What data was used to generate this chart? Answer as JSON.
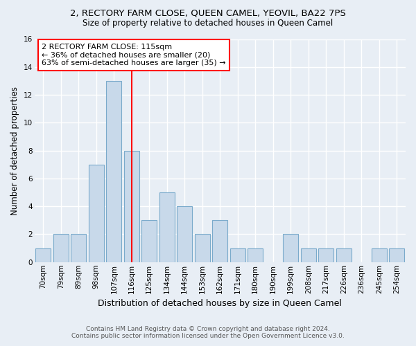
{
  "title": "2, RECTORY FARM CLOSE, QUEEN CAMEL, YEOVIL, BA22 7PS",
  "subtitle": "Size of property relative to detached houses in Queen Camel",
  "xlabel": "Distribution of detached houses by size in Queen Camel",
  "ylabel": "Number of detached properties",
  "bin_labels": [
    "70sqm",
    "79sqm",
    "89sqm",
    "98sqm",
    "107sqm",
    "116sqm",
    "125sqm",
    "134sqm",
    "144sqm",
    "153sqm",
    "162sqm",
    "171sqm",
    "180sqm",
    "190sqm",
    "199sqm",
    "208sqm",
    "217sqm",
    "226sqm",
    "236sqm",
    "245sqm",
    "254sqm"
  ],
  "values": [
    1,
    2,
    2,
    7,
    13,
    8,
    3,
    5,
    4,
    2,
    3,
    1,
    1,
    0,
    2,
    1,
    1,
    1,
    0,
    1,
    1
  ],
  "bar_color": "#c8d9ea",
  "bar_edge_color": "#7aaacb",
  "red_line_bin": 5,
  "annotation_title": "2 RECTORY FARM CLOSE: 115sqm",
  "annotation_line1": "← 36% of detached houses are smaller (20)",
  "annotation_line2": "63% of semi-detached houses are larger (35) →",
  "footer1": "Contains HM Land Registry data © Crown copyright and database right 2024.",
  "footer2": "Contains public sector information licensed under the Open Government Licence v3.0.",
  "bg_color": "#e8eef5",
  "plot_bg_color": "#e8eef5",
  "grid_color": "#ffffff",
  "ylim": [
    0,
    16
  ],
  "yticks": [
    0,
    2,
    4,
    6,
    8,
    10,
    12,
    14,
    16
  ],
  "title_fontsize": 9.5,
  "subtitle_fontsize": 8.5,
  "ylabel_fontsize": 8.5,
  "xlabel_fontsize": 9,
  "tick_fontsize": 7.5,
  "annotation_fontsize": 8,
  "footer_fontsize": 6.5
}
